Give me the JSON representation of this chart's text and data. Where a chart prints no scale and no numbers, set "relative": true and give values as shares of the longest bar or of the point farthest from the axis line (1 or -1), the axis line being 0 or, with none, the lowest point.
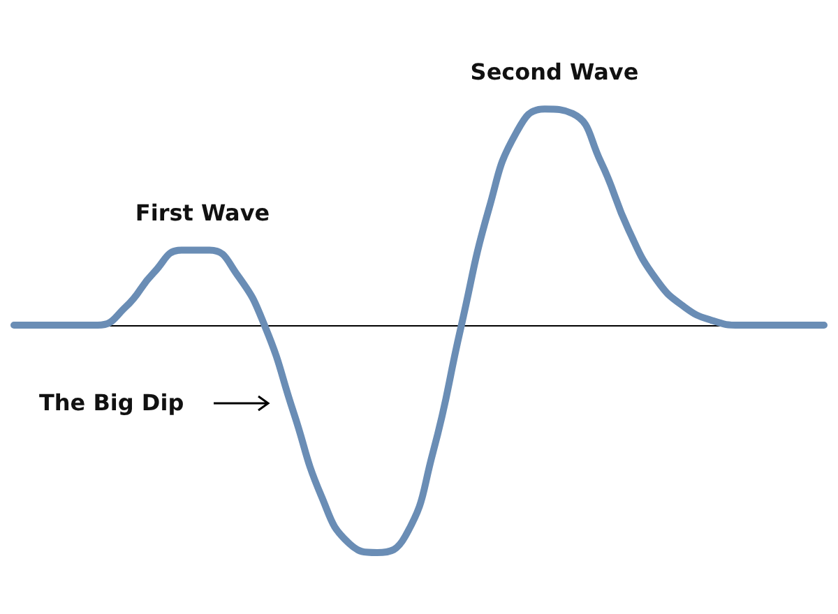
{
  "chart_data": {
    "type": "line",
    "relative": true,
    "marker": "none",
    "line_style": "solid",
    "categories": [
      null,
      null,
      null,
      null,
      null,
      null,
      null,
      null,
      null,
      null,
      null,
      null,
      null,
      null,
      null,
      null,
      null,
      null,
      null,
      null,
      null,
      null,
      null,
      null,
      null,
      null,
      null,
      null,
      null,
      null
    ],
    "series": [
      {
        "color": "#6a8db5",
        "values": [
          0,
          0,
          0,
          0,
          0.08,
          0.23,
          0.33,
          0.33,
          0.22,
          -0.01,
          -0.38,
          -0.75,
          -0.96,
          -1,
          -0.93,
          -0.56,
          -0.01,
          0.51,
          0.85,
          0.95,
          0.93,
          0.72,
          0.42,
          0.2,
          0.08,
          0.02,
          0,
          0,
          0,
          0
        ]
      }
    ],
    "annotations": [
      "First Wave",
      "Second Wave",
      "The Big Dip"
    ]
  }
}
